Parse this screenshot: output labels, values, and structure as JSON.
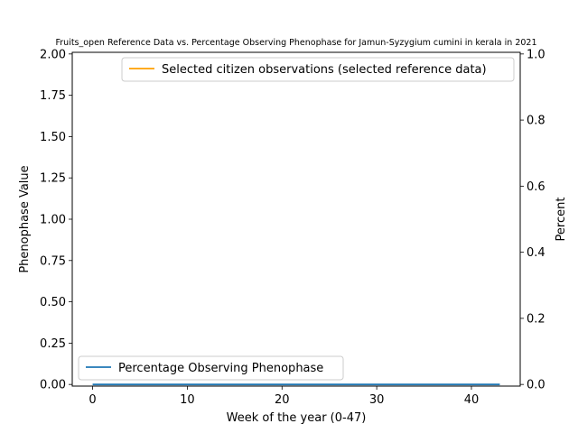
{
  "chart_data": {
    "type": "line",
    "title": "Fruits_open Reference Data vs. Percentage Observing Phenophase for Jamun-Syzygium cumini in kerala in 2021",
    "xlabel": "Week of the year (0-47)",
    "ylabel_left": "Phenophase Value",
    "ylabel_right": "Percent",
    "xlim": [
      -2.15,
      45.15
    ],
    "ylim_left": [
      -0.01,
      2.01
    ],
    "ylim_right": [
      -0.005,
      1.005
    ],
    "x_ticks": [
      0,
      10,
      20,
      30,
      40
    ],
    "y_ticks_left": [
      0.0,
      0.25,
      0.5,
      0.75,
      1.0,
      1.25,
      1.5,
      1.75,
      2.0
    ],
    "y_ticks_right": [
      0.0,
      0.2,
      0.4,
      0.6,
      0.8,
      1.0
    ],
    "grid": false,
    "series": [
      {
        "name": "Percentage Observing Phenophase",
        "axis": "left",
        "color": "#1f77b4",
        "x": [
          0,
          43
        ],
        "y": [
          0.0,
          0.0
        ]
      },
      {
        "name": "Selected citizen observations (selected reference data)",
        "axis": "right",
        "color": "#ff9f00",
        "x": [],
        "y": []
      }
    ],
    "legends": [
      {
        "placement": "lower-left",
        "entries": [
          "Percentage Observing Phenophase"
        ]
      },
      {
        "placement": "upper-right",
        "entries": [
          "Selected citizen observations (selected reference data)"
        ]
      }
    ]
  }
}
